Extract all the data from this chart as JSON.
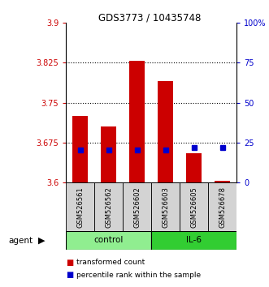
{
  "title": "GDS3773 / 10435748",
  "samples": [
    "GSM526561",
    "GSM526562",
    "GSM526602",
    "GSM526603",
    "GSM526605",
    "GSM526678"
  ],
  "red_values": [
    3.725,
    3.705,
    3.828,
    3.79,
    3.655,
    3.603
  ],
  "blue_values": [
    20,
    20,
    20,
    20,
    22,
    22
  ],
  "ylim_left": [
    3.6,
    3.9
  ],
  "ylim_right": [
    0,
    100
  ],
  "left_ticks": [
    3.6,
    3.675,
    3.75,
    3.825,
    3.9
  ],
  "right_ticks": [
    0,
    25,
    50,
    75,
    100
  ],
  "right_tick_labels": [
    "0",
    "25",
    "50",
    "75",
    "100%"
  ],
  "bar_color": "#CC0000",
  "dot_color": "#0000CC",
  "bar_bottom": 3.6,
  "gridlines": [
    3.675,
    3.75,
    3.825
  ],
  "control_color": "#90EE90",
  "il6_color": "#32CD32",
  "sample_bg_color": "#D3D3D3"
}
